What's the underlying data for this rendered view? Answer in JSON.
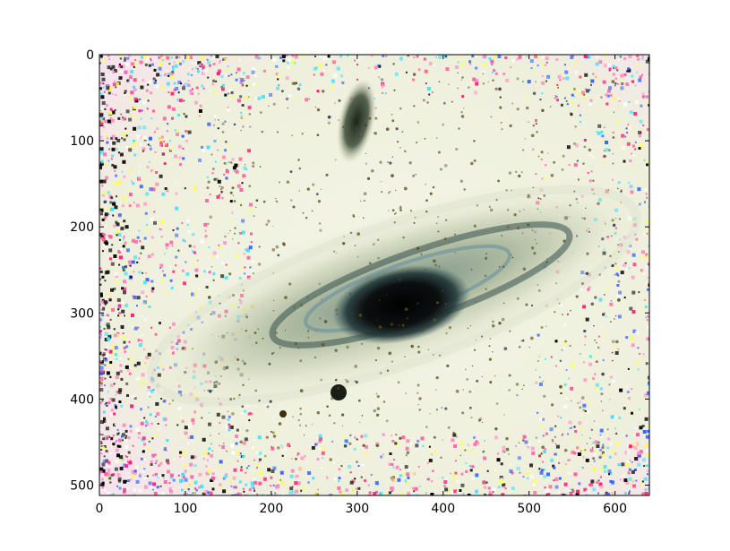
{
  "chart_data": {
    "type": "heatmap",
    "description_kind": "image",
    "title": "",
    "xlabel": "",
    "ylabel": "",
    "xlim": [
      0,
      640
    ],
    "ylim": [
      512,
      0
    ],
    "x_ticks": [
      0,
      100,
      200,
      300,
      400,
      500,
      600
    ],
    "y_ticks": [
      0,
      100,
      200,
      300,
      400,
      500
    ],
    "x_tick_labels": [
      "0",
      "100",
      "200",
      "300",
      "400",
      "500",
      "600"
    ],
    "y_tick_labels": [
      "0",
      "100",
      "200",
      "300",
      "400",
      "500"
    ],
    "grid": false,
    "legend": "none",
    "colors": {
      "sky": "#eef0dc",
      "galaxy_disk": "#b8c4a4",
      "dust_lane": "#3c5a5a",
      "core": "#0a0a0a",
      "noise_pink": "#ff5aa0",
      "noise_yellow": "#ffff50",
      "noise_blue": "#3060ff"
    }
  }
}
